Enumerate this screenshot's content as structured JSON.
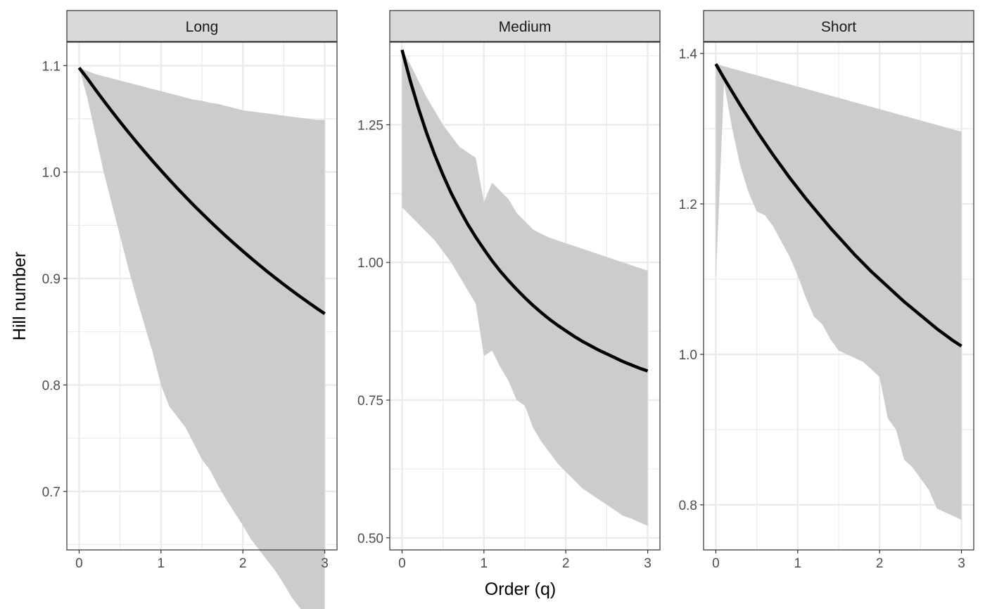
{
  "chart_data": {
    "type": "line",
    "xlabel": "Order (q)",
    "ylabel": "Hill number",
    "panels": [
      {
        "name": "Long",
        "xlim": [
          -0.15,
          3.15
        ],
        "ylim": [
          0.645,
          1.122
        ],
        "xticks": [
          0,
          1,
          2,
          3
        ],
        "yticks": [
          0.7,
          0.8,
          0.9,
          1.0,
          1.1
        ],
        "ytick_labels": [
          "0.7",
          "0.8",
          "0.9",
          "1.0",
          "1.1"
        ],
        "x": [
          0,
          0.1,
          0.2,
          0.3,
          0.4,
          0.5,
          0.6,
          0.7,
          0.8,
          0.9,
          1,
          1.1,
          1.2,
          1.3,
          1.4,
          1.5,
          1.6,
          1.7,
          1.8,
          1.9,
          2,
          2.1,
          2.2,
          2.3,
          2.4,
          2.5,
          2.6,
          2.7,
          2.8,
          2.9,
          3
        ],
        "estimate": [
          1.098,
          1.088,
          1.0774,
          1.0671,
          1.057,
          1.0472,
          1.0376,
          1.0282,
          1.0191,
          1.0102,
          1.0015,
          0.993,
          0.9847,
          0.9767,
          0.9688,
          0.9612,
          0.9537,
          0.9464,
          0.9393,
          0.9324,
          0.9257,
          0.9191,
          0.9127,
          0.9064,
          0.9003,
          0.8944,
          0.8886,
          0.883,
          0.8775,
          0.8721,
          0.8669
        ],
        "lower": [
          1.098,
          1.07,
          1.035,
          1.0,
          0.97,
          0.94,
          0.91,
          0.882,
          0.856,
          0.83,
          0.8,
          0.78,
          0.77,
          0.76,
          0.745,
          0.73,
          0.72,
          0.705,
          0.692,
          0.68,
          0.668,
          0.655,
          0.645,
          0.635,
          0.625,
          0.613,
          0.6,
          0.59,
          0.583,
          0.578,
          0.576
        ],
        "upper": [
          1.098,
          1.095,
          1.092,
          1.09,
          1.088,
          1.086,
          1.084,
          1.082,
          1.08,
          1.078,
          1.076,
          1.074,
          1.072,
          1.07,
          1.068,
          1.067,
          1.065,
          1.064,
          1.062,
          1.06,
          1.058,
          1.057,
          1.056,
          1.055,
          1.054,
          1.053,
          1.052,
          1.051,
          1.05,
          1.049,
          1.049
        ]
      },
      {
        "name": "Medium",
        "xlim": [
          -0.15,
          3.15
        ],
        "ylim": [
          0.478,
          1.4
        ],
        "xticks": [
          0,
          1,
          2,
          3
        ],
        "yticks": [
          0.5,
          0.75,
          1.0,
          1.25
        ],
        "ytick_labels": [
          "0.50",
          "0.75",
          "1.00",
          "1.25"
        ],
        "x": [
          0,
          0.1,
          0.2,
          0.3,
          0.4,
          0.5,
          0.6,
          0.7,
          0.8,
          0.9,
          1,
          1.1,
          1.2,
          1.3,
          1.4,
          1.5,
          1.6,
          1.7,
          1.8,
          1.9,
          2,
          2.1,
          2.2,
          2.3,
          2.4,
          2.5,
          2.6,
          2.7,
          2.8,
          2.9,
          3
        ],
        "estimate": [
          1.386,
          1.33,
          1.28,
          1.235,
          1.195,
          1.159,
          1.126,
          1.097,
          1.07,
          1.046,
          1.024,
          1.003,
          0.984,
          0.967,
          0.951,
          0.936,
          0.922,
          0.909,
          0.897,
          0.886,
          0.876,
          0.866,
          0.857,
          0.849,
          0.841,
          0.834,
          0.827,
          0.82,
          0.814,
          0.808,
          0.803
        ],
        "lower": [
          1.1,
          1.085,
          1.07,
          1.055,
          1.04,
          1.02,
          1.0,
          0.975,
          0.95,
          0.925,
          0.83,
          0.84,
          0.81,
          0.785,
          0.75,
          0.74,
          0.7,
          0.675,
          0.655,
          0.635,
          0.62,
          0.605,
          0.59,
          0.58,
          0.57,
          0.56,
          0.55,
          0.54,
          0.535,
          0.528,
          0.522
        ],
        "upper": [
          1.386,
          1.36,
          1.33,
          1.3,
          1.275,
          1.25,
          1.23,
          1.21,
          1.2,
          1.19,
          1.11,
          1.145,
          1.13,
          1.115,
          1.09,
          1.075,
          1.06,
          1.052,
          1.045,
          1.04,
          1.035,
          1.03,
          1.025,
          1.02,
          1.015,
          1.01,
          1.005,
          1.0,
          0.995,
          0.99,
          0.985
        ]
      },
      {
        "name": "Short",
        "xlim": [
          -0.15,
          3.15
        ],
        "ylim": [
          0.74,
          1.415
        ],
        "xticks": [
          0,
          1,
          2,
          3
        ],
        "yticks": [
          0.8,
          1.0,
          1.2,
          1.4
        ],
        "ytick_labels": [
          "0.8",
          "1.0",
          "1.2",
          "1.4"
        ],
        "x": [
          0,
          0.1,
          0.2,
          0.3,
          0.4,
          0.5,
          0.6,
          0.7,
          0.8,
          0.9,
          1,
          1.1,
          1.2,
          1.3,
          1.4,
          1.5,
          1.6,
          1.7,
          1.8,
          1.9,
          2,
          2.1,
          2.2,
          2.3,
          2.4,
          2.5,
          2.6,
          2.7,
          2.8,
          2.9,
          3
        ],
        "estimate": [
          1.386,
          1.367,
          1.349,
          1.331,
          1.314,
          1.297,
          1.281,
          1.265,
          1.25,
          1.235,
          1.221,
          1.207,
          1.194,
          1.181,
          1.168,
          1.156,
          1.144,
          1.132,
          1.121,
          1.11,
          1.1,
          1.09,
          1.08,
          1.07,
          1.061,
          1.052,
          1.043,
          1.034,
          1.026,
          1.018,
          1.011
        ],
        "lower": [
          1.1,
          1.36,
          1.3,
          1.25,
          1.215,
          1.19,
          1.185,
          1.17,
          1.15,
          1.13,
          1.105,
          1.075,
          1.05,
          1.04,
          1.02,
          1.005,
          1.0,
          0.995,
          0.99,
          0.98,
          0.97,
          0.915,
          0.9,
          0.86,
          0.85,
          0.835,
          0.82,
          0.795,
          0.79,
          0.785,
          0.78
        ],
        "upper": [
          1.386,
          1.383,
          1.38,
          1.377,
          1.374,
          1.371,
          1.368,
          1.365,
          1.362,
          1.359,
          1.356,
          1.353,
          1.35,
          1.347,
          1.344,
          1.341,
          1.338,
          1.335,
          1.332,
          1.329,
          1.326,
          1.323,
          1.32,
          1.317,
          1.314,
          1.311,
          1.308,
          1.305,
          1.302,
          1.299,
          1.296
        ]
      }
    ],
    "ribbon_color": "#cccccc",
    "line_color": "#000000",
    "grid": true,
    "grid_color": "#ebebeb",
    "strip_fill": "#d9d9d9"
  }
}
